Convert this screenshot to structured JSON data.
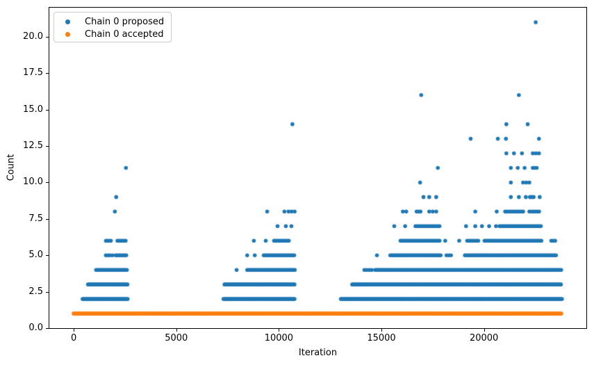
{
  "chart_data": {
    "type": "scatter",
    "title": "",
    "xlabel": "Iteration",
    "ylabel": "Count",
    "xlim": [
      -1190,
      24990
    ],
    "ylim": [
      0,
      22
    ],
    "grid": false,
    "x_ticks": [
      {
        "v": 0,
        "label": "0"
      },
      {
        "v": 5000,
        "label": "5000"
      },
      {
        "v": 10000,
        "label": "10000"
      },
      {
        "v": 15000,
        "label": "15000"
      },
      {
        "v": 20000,
        "label": "20000"
      }
    ],
    "y_ticks": [
      {
        "v": 0,
        "label": "0.0"
      },
      {
        "v": 2.5,
        "label": "2.5"
      },
      {
        "v": 5,
        "label": "5.0"
      },
      {
        "v": 7.5,
        "label": "7.5"
      },
      {
        "v": 10,
        "label": "10.0"
      },
      {
        "v": 12.5,
        "label": "12.5"
      },
      {
        "v": 15,
        "label": "15.0"
      },
      {
        "v": 17.5,
        "label": "17.5"
      },
      {
        "v": 20,
        "label": "20.0"
      }
    ],
    "legend": {
      "position": "upper-left"
    },
    "series": [
      {
        "name": "Chain 0 proposed",
        "color": "#1f77b4",
        "segments": [
          {
            "y": 2,
            "from": 430,
            "to": 2660,
            "step": 55
          },
          {
            "y": 3,
            "from": 695,
            "to": 2660,
            "step": 55
          },
          {
            "y": 4,
            "from": 1090,
            "to": 2635,
            "step": 60
          },
          {
            "y": 5,
            "from": 2040,
            "to": 2600,
            "step": 65
          },
          {
            "y": 6,
            "from": 1570,
            "to": 1870,
            "step": 80
          },
          {
            "y": 6,
            "from": 2130,
            "to": 2575,
            "step": 80
          },
          {
            "y": 2,
            "from": 7300,
            "to": 10800,
            "step": 55
          },
          {
            "y": 3,
            "from": 7350,
            "to": 10770,
            "step": 55
          },
          {
            "y": 4,
            "from": 8455,
            "to": 10775,
            "step": 58
          },
          {
            "y": 5,
            "from": 9260,
            "to": 10775,
            "step": 62
          },
          {
            "y": 6,
            "from": 9765,
            "to": 10505,
            "step": 72
          },
          {
            "y": 2,
            "from": 13020,
            "to": 23800,
            "step": 55
          },
          {
            "y": 3,
            "from": 13575,
            "to": 23800,
            "step": 55
          },
          {
            "y": 4,
            "from": 14170,
            "to": 14530,
            "step": 120
          },
          {
            "y": 4,
            "from": 14700,
            "to": 23800,
            "step": 57
          },
          {
            "y": 5,
            "from": 15430,
            "to": 17890,
            "step": 60
          },
          {
            "y": 5,
            "from": 18170,
            "to": 18400,
            "step": 110
          },
          {
            "y": 5,
            "from": 19070,
            "to": 23560,
            "step": 60
          },
          {
            "y": 6,
            "from": 15930,
            "to": 17840,
            "step": 68
          },
          {
            "y": 6,
            "from": 19180,
            "to": 19745,
            "step": 90
          },
          {
            "y": 6,
            "from": 20025,
            "to": 22825,
            "step": 66
          },
          {
            "y": 6,
            "from": 23280,
            "to": 23560,
            "step": 95
          },
          {
            "y": 7,
            "from": 16660,
            "to": 17895,
            "step": 90
          },
          {
            "y": 7,
            "from": 20755,
            "to": 22825,
            "step": 72
          },
          {
            "y": 8,
            "from": 16715,
            "to": 16995,
            "step": 95
          },
          {
            "y": 8,
            "from": 21030,
            "to": 21930,
            "step": 88
          },
          {
            "y": 8,
            "from": 22210,
            "to": 22715,
            "step": 95
          }
        ],
        "points": [
          [
            1565,
            5
          ],
          [
            1660,
            5
          ],
          [
            1760,
            5
          ],
          [
            1880,
            5
          ],
          [
            2005,
            8
          ],
          [
            2070,
            9
          ],
          [
            2545,
            11
          ],
          [
            7940,
            4
          ],
          [
            8455,
            5
          ],
          [
            8825,
            5
          ],
          [
            8780,
            6
          ],
          [
            9360,
            6
          ],
          [
            9935,
            7
          ],
          [
            10340,
            7
          ],
          [
            10610,
            7
          ],
          [
            9430,
            8
          ],
          [
            10270,
            8
          ],
          [
            10470,
            8
          ],
          [
            10620,
            8
          ],
          [
            10770,
            8
          ],
          [
            10660,
            14
          ],
          [
            14780,
            5
          ],
          [
            18110,
            6
          ],
          [
            18790,
            6
          ],
          [
            15625,
            7
          ],
          [
            16155,
            7
          ],
          [
            19125,
            7
          ],
          [
            19575,
            7
          ],
          [
            19900,
            7
          ],
          [
            20250,
            7
          ],
          [
            20585,
            7
          ],
          [
            16045,
            8
          ],
          [
            16210,
            8
          ],
          [
            17330,
            8
          ],
          [
            17500,
            8
          ],
          [
            17670,
            8
          ],
          [
            19575,
            8
          ],
          [
            20620,
            8
          ],
          [
            17050,
            9
          ],
          [
            17330,
            9
          ],
          [
            17670,
            9
          ],
          [
            21310,
            9
          ],
          [
            21700,
            9
          ],
          [
            22040,
            9
          ],
          [
            22240,
            9
          ],
          [
            22330,
            9
          ],
          [
            22420,
            9
          ],
          [
            22715,
            9
          ],
          [
            16885,
            10
          ],
          [
            21310,
            10
          ],
          [
            21905,
            10
          ],
          [
            22060,
            10
          ],
          [
            22210,
            10
          ],
          [
            17750,
            11
          ],
          [
            21310,
            11
          ],
          [
            21645,
            11
          ],
          [
            21980,
            11
          ],
          [
            22380,
            11
          ],
          [
            22475,
            11
          ],
          [
            22570,
            11
          ],
          [
            21090,
            12
          ],
          [
            21460,
            12
          ],
          [
            21850,
            12
          ],
          [
            22380,
            12
          ],
          [
            22530,
            12
          ],
          [
            22680,
            12
          ],
          [
            19350,
            13
          ],
          [
            20675,
            13
          ],
          [
            21070,
            13
          ],
          [
            22680,
            13
          ],
          [
            21090,
            14
          ],
          [
            22130,
            14
          ],
          [
            16940,
            16
          ],
          [
            21700,
            16
          ],
          [
            22520,
            21
          ]
        ]
      },
      {
        "name": "Chain 0 accepted",
        "color": "#ff7f0e",
        "segments": [
          {
            "y": 1,
            "from": 0,
            "to": 23800,
            "step": 45
          }
        ],
        "points": []
      }
    ]
  }
}
